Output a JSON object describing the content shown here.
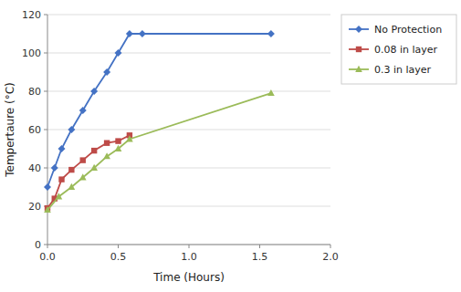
{
  "chart_data": {
    "type": "line",
    "x_label": "Time (Hours)",
    "y_label": "Tempertaure (°C)",
    "xlim": [
      0,
      2
    ],
    "ylim": [
      0,
      120
    ],
    "xticks": [
      {
        "value": 0,
        "label": "0.0"
      },
      {
        "value": 0.5,
        "label": "0.5"
      },
      {
        "value": 1,
        "label": "1.0"
      },
      {
        "value": 1.5,
        "label": "1.5"
      },
      {
        "value": 2,
        "label": "2.0"
      }
    ],
    "yticks": [
      0,
      20,
      40,
      60,
      80,
      100,
      120
    ],
    "grid": true,
    "legend": "right",
    "series": [
      {
        "name": "No Protection",
        "color": "#4472C4",
        "marker": "diamond",
        "x": [
          0,
          0.05,
          0.1,
          0.17,
          0.25,
          0.33,
          0.42,
          0.5,
          0.58,
          0.67,
          1.58
        ],
        "values": [
          30,
          40,
          50,
          60,
          70,
          80,
          90,
          100,
          110,
          110,
          110
        ]
      },
      {
        "name": "0.08 in layer",
        "color": "#BE4B48",
        "marker": "square",
        "x": [
          0,
          0.05,
          0.1,
          0.17,
          0.25,
          0.33,
          0.42,
          0.5,
          0.58
        ],
        "values": [
          19,
          24,
          34,
          39,
          44,
          49,
          53,
          54,
          57
        ]
      },
      {
        "name": "0.3 in layer",
        "color": "#9BBB59",
        "marker": "triangle",
        "x": [
          0,
          0.08,
          0.17,
          0.25,
          0.33,
          0.42,
          0.5,
          0.58,
          1.58
        ],
        "values": [
          18,
          25,
          30,
          35,
          40,
          46,
          50,
          55,
          79
        ]
      }
    ]
  }
}
